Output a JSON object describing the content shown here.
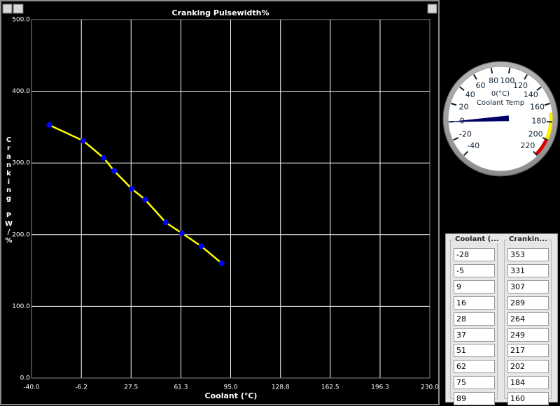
{
  "chart_data": {
    "type": "line",
    "title": "Cranking Pulsewidth%",
    "x_label": "Coolant (°C)",
    "y_label": "Cranking PW/%",
    "x": [
      -28,
      -5,
      9,
      16,
      28,
      37,
      51,
      62,
      75,
      89
    ],
    "series": [
      {
        "color": "#ffff00",
        "marker_color": "#0000ff",
        "values": [
          353,
          331,
          307,
          289,
          264,
          249,
          217,
          202,
          184,
          160
        ]
      }
    ],
    "xlim": [
      -40,
      230
    ],
    "xticks": [
      {
        "value": -40,
        "label": "-40.0"
      },
      {
        "value": -6.2,
        "label": "-6.2"
      },
      {
        "value": 27.5,
        "label": "27.5"
      },
      {
        "value": 61.3,
        "label": "61.3"
      },
      {
        "value": 95,
        "label": "95.0"
      },
      {
        "value": 128.8,
        "label": "128.8"
      },
      {
        "value": 162.5,
        "label": "162.5"
      },
      {
        "value": 196.3,
        "label": "196.3"
      },
      {
        "value": 230,
        "label": "230.0"
      }
    ],
    "ylim": [
      0,
      500
    ],
    "yticks": [
      {
        "value": 0,
        "label": "0.0"
      },
      {
        "value": 100,
        "label": "100.0"
      },
      {
        "value": 200,
        "label": "200.0"
      },
      {
        "value": 300,
        "label": "300.0"
      },
      {
        "value": 400,
        "label": "400.0"
      },
      {
        "value": 500,
        "label": "500.0"
      }
    ],
    "grid": true
  },
  "gauge": {
    "title": "Coolant Temp",
    "value": 0,
    "value_label": "0(°C)",
    "min": -40,
    "max": 220,
    "ticks": [
      -40,
      -20,
      0,
      20,
      40,
      60,
      80,
      100,
      120,
      140,
      160,
      180,
      200,
      220
    ],
    "zones": [
      {
        "from": 170,
        "to": 200,
        "color": "#ffee00"
      },
      {
        "from": 200,
        "to": 220,
        "color": "#dd0000"
      }
    ],
    "needle_color": "#000066"
  },
  "table": {
    "headers": [
      "Coolant (...",
      "Crankin..."
    ],
    "rows": [
      [
        -28,
        353
      ],
      [
        -5,
        331
      ],
      [
        9,
        307
      ],
      [
        16,
        289
      ],
      [
        28,
        264
      ],
      [
        37,
        249
      ],
      [
        51,
        217
      ],
      [
        62,
        202
      ],
      [
        75,
        184
      ],
      [
        89,
        160
      ]
    ]
  }
}
